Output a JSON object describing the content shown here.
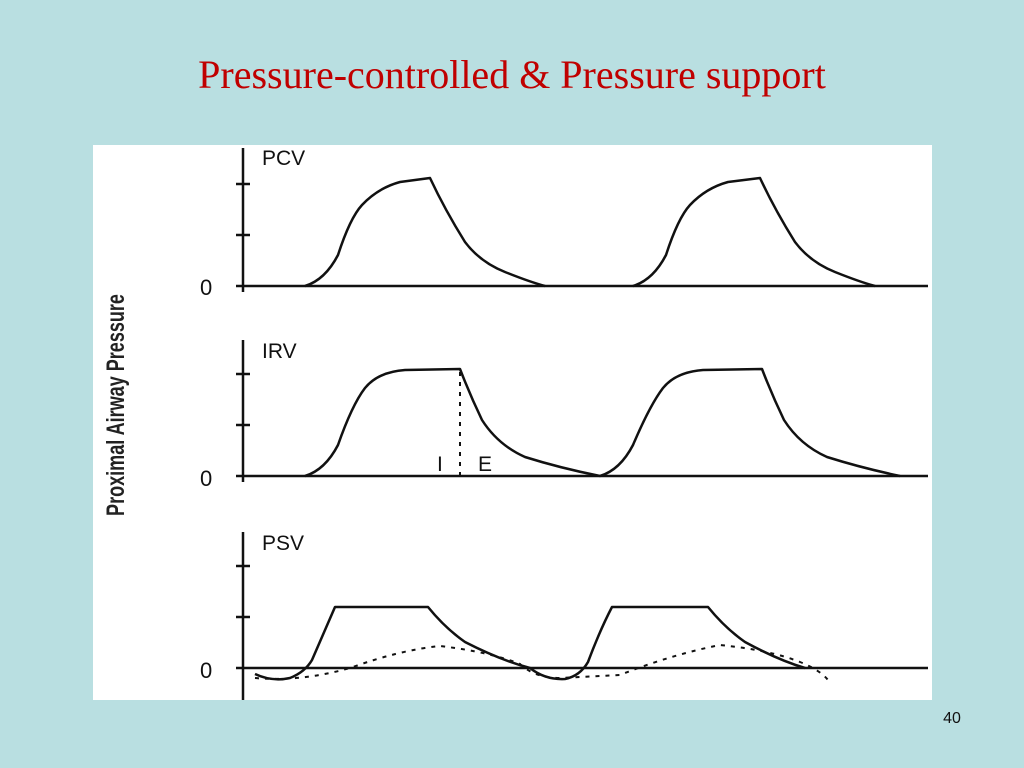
{
  "title": "Pressure-controlled & Pressure support",
  "y_axis_label": "Proximal Airway Pressure",
  "panels": [
    {
      "label": "PCV",
      "zero": "0"
    },
    {
      "label": "IRV",
      "zero": "0",
      "annotations": [
        "I",
        "E"
      ]
    },
    {
      "label": "PSV",
      "zero": "0"
    }
  ],
  "page_number": "40"
}
